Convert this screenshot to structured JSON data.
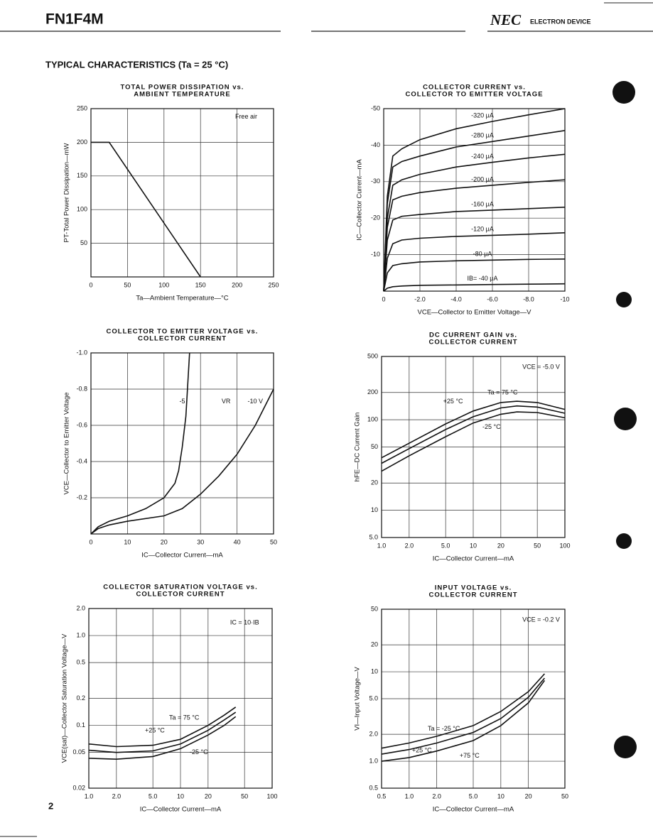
{
  "header": {
    "part": "FN1F4M",
    "brand": "NEC",
    "brand_sub": "ELECTRON DEVICE"
  },
  "section_title": "TYPICAL CHARACTERISTICS (Ta = 25 °C)",
  "page_number": "2",
  "chart_data": [
    {
      "type": "line",
      "title": [
        "TOTAL POWER DISSIPATION vs.",
        "AMBIENT TEMPERATURE"
      ],
      "x_label": "Ta—Ambient Temperature—°C",
      "y_label": "PT-Total Power Dissipation—mW",
      "xlim": [
        0,
        250
      ],
      "ylim": [
        0,
        250
      ],
      "xticks": [
        0,
        50,
        100,
        150,
        200,
        250
      ],
      "yticks": [
        50,
        100,
        150,
        200,
        250
      ],
      "grid": true,
      "color": "#111",
      "annotations": [
        "Free air"
      ],
      "series": [
        {
          "x": [
            0,
            25,
            150
          ],
          "values": [
            200,
            200,
            0
          ]
        }
      ]
    },
    {
      "type": "line",
      "title": [
        "COLLECTOR CURRENT vs.",
        "COLLECTOR TO EMITTER VOLTAGE"
      ],
      "x_label": "VCE—Collector to Emitter Voltage—V",
      "y_label": "IC—Collector Current—mA",
      "xlim": [
        0,
        -10
      ],
      "ylim": [
        0,
        -50
      ],
      "xticks": [
        0,
        {
          "value": -2,
          "label": "-2.0"
        },
        {
          "value": -4,
          "label": "-4.0"
        },
        {
          "value": -6,
          "label": "-6.0"
        },
        {
          "value": -8,
          "label": "-8.0"
        },
        -10
      ],
      "yticks": [
        -10,
        -20,
        -30,
        -40,
        -50
      ],
      "grid": true,
      "color": "#111",
      "annotations": [],
      "series": [
        {
          "name": "-320 μA",
          "x": [
            0,
            -0.2,
            -0.5,
            -1,
            -2,
            -4,
            -6,
            -8,
            -10
          ],
          "values": [
            0,
            -26,
            -37,
            -39,
            -41.5,
            -44.5,
            -46.5,
            -48.3,
            -50
          ]
        },
        {
          "name": "-280 μA",
          "x": [
            0,
            -0.2,
            -0.5,
            -1,
            -2,
            -4,
            -6,
            -8,
            -10
          ],
          "values": [
            0,
            -24,
            -34,
            -35.5,
            -37,
            -39.5,
            -41,
            -42.5,
            -44
          ]
        },
        {
          "name": "-240 μA",
          "x": [
            0,
            -0.2,
            -0.5,
            -1,
            -2,
            -4,
            -6,
            -8,
            -10
          ],
          "values": [
            0,
            -20,
            -29,
            -30.5,
            -32,
            -34,
            -35.3,
            -36.5,
            -37.5
          ]
        },
        {
          "name": "-200 μA",
          "x": [
            0,
            -0.2,
            -0.5,
            -1,
            -2,
            -4,
            -6,
            -8,
            -10
          ],
          "values": [
            0,
            -17.5,
            -25,
            -26,
            -27,
            -28.2,
            -29,
            -29.8,
            -30.5
          ]
        },
        {
          "name": "-160 μA",
          "x": [
            0,
            -0.2,
            -0.5,
            -1,
            -2,
            -4,
            -6,
            -8,
            -10
          ],
          "values": [
            0,
            -14,
            -19.5,
            -20.5,
            -21,
            -21.8,
            -22.2,
            -22.6,
            -23
          ]
        },
        {
          "name": "-120 μA",
          "x": [
            0,
            -0.2,
            -0.5,
            -1,
            -2,
            -4,
            -6,
            -8,
            -10
          ],
          "values": [
            0,
            -9,
            -13,
            -14,
            -14.5,
            -15,
            -15.3,
            -15.6,
            -16
          ]
        },
        {
          "name": "-80 μA",
          "x": [
            0,
            -0.2,
            -0.5,
            -1,
            -2,
            -4,
            -6,
            -8,
            -10
          ],
          "values": [
            0,
            -5,
            -7,
            -7.5,
            -8,
            -8.3,
            -8.5,
            -8.7,
            -8.8
          ]
        },
        {
          "name": "IB= -40 μA",
          "x": [
            0,
            -0.2,
            -0.5,
            -1,
            -2,
            -4,
            -6,
            -8,
            -10
          ],
          "values": [
            0,
            -0.8,
            -1.2,
            -1.4,
            -1.6,
            -1.7,
            -1.8,
            -1.9,
            -2
          ]
        }
      ]
    },
    {
      "type": "line",
      "title": [
        "COLLECTOR TO EMITTER VOLTAGE vs.",
        "COLLECTOR CURRENT"
      ],
      "x_label": "IC—Collector Current—mA",
      "y_label": "VCE—Collector to Emitter Voltage",
      "xlim": [
        0,
        50
      ],
      "ylim": [
        0,
        -1
      ],
      "xticks": [
        0,
        10,
        20,
        30,
        40,
        50
      ],
      "yticks": [
        -0.2,
        -0.4,
        -0.6,
        -0.8,
        {
          "value": -1,
          "label": "-1.0"
        }
      ],
      "grid": true,
      "color": "#111",
      "annotations": [
        "VR"
      ],
      "series": [
        {
          "name": "-5",
          "x": [
            0,
            2,
            5,
            10,
            15,
            20,
            23,
            24,
            25,
            26,
            27
          ],
          "values": [
            0,
            -0.04,
            -0.07,
            -0.1,
            -0.14,
            -0.2,
            -0.28,
            -0.35,
            -0.48,
            -0.65,
            -1
          ]
        },
        {
          "name": "-10 V",
          "x": [
            0,
            2,
            5,
            10,
            20,
            25,
            30,
            35,
            40,
            45,
            50
          ],
          "values": [
            0,
            -0.03,
            -0.05,
            -0.07,
            -0.1,
            -0.14,
            -0.22,
            -0.32,
            -0.44,
            -0.6,
            -0.8
          ]
        }
      ]
    },
    {
      "type": "line",
      "title": [
        "DC CURRENT GAIN vs.",
        "COLLECTOR CURRENT"
      ],
      "x_label": "IC—Collector Current—mA",
      "y_label": "hFE—DC Current Gain",
      "xscale": "log",
      "yscale": "log",
      "xlim": [
        1,
        100
      ],
      "ylim": [
        5,
        500
      ],
      "xticks": [
        {
          "value": 1,
          "label": "1.0"
        },
        {
          "value": 2,
          "label": "2.0"
        },
        {
          "value": 5,
          "label": "5.0"
        },
        10,
        20,
        50,
        100
      ],
      "yticks": [
        {
          "value": 5,
          "label": "5.0"
        },
        10,
        20,
        50,
        100,
        200,
        500
      ],
      "grid": true,
      "color": "#111",
      "annotations": [
        "VCE = -5.0 V"
      ],
      "series": [
        {
          "name": "Ta = 75 °C",
          "x": [
            1,
            2,
            5,
            10,
            20,
            30,
            50,
            100
          ],
          "values": [
            38,
            55,
            90,
            125,
            155,
            160,
            155,
            130
          ]
        },
        {
          "name": "+25 °C",
          "x": [
            1,
            2,
            5,
            10,
            20,
            30,
            50,
            100
          ],
          "values": [
            33,
            48,
            78,
            108,
            135,
            142,
            138,
            118
          ]
        },
        {
          "name": "-25 °C",
          "x": [
            1,
            2,
            5,
            10,
            20,
            30,
            50,
            100
          ],
          "values": [
            27,
            40,
            65,
            92,
            115,
            122,
            120,
            105
          ]
        }
      ]
    },
    {
      "type": "line",
      "title": [
        "COLLECTOR SATURATION VOLTAGE vs.",
        "COLLECTOR CURRENT"
      ],
      "x_label": "IC—Collector Current—mA",
      "y_label": "VCE(sat)—Collector Saturation Voltage—V",
      "xscale": "log",
      "yscale": "log",
      "xlim": [
        1,
        100
      ],
      "ylim": [
        0.02,
        2
      ],
      "xticks": [
        {
          "value": 1,
          "label": "1.0"
        },
        {
          "value": 2,
          "label": "2.0"
        },
        {
          "value": 5,
          "label": "5.0"
        },
        10,
        20,
        50,
        100
      ],
      "yticks": [
        0.02,
        0.05,
        0.1,
        0.2,
        0.5,
        {
          "value": 1,
          "label": "1.0"
        },
        {
          "value": 2,
          "label": "2.0"
        }
      ],
      "grid": true,
      "color": "#111",
      "annotations": [
        "IC = 10·IB"
      ],
      "series": [
        {
          "name": "Ta = 75 °C",
          "x": [
            1,
            2,
            5,
            10,
            20,
            30,
            40
          ],
          "values": [
            0.062,
            0.058,
            0.06,
            0.07,
            0.1,
            0.13,
            0.16
          ]
        },
        {
          "name": "+25 °C",
          "x": [
            1,
            2,
            5,
            10,
            20,
            30,
            40
          ],
          "values": [
            0.053,
            0.05,
            0.052,
            0.062,
            0.088,
            0.115,
            0.14
          ]
        },
        {
          "name": "-25 °C",
          "x": [
            1,
            2,
            5,
            10,
            20,
            30,
            40
          ],
          "values": [
            0.043,
            0.042,
            0.045,
            0.055,
            0.078,
            0.1,
            0.125
          ]
        }
      ]
    },
    {
      "type": "line",
      "title": [
        "INPUT VOLTAGE vs.",
        "COLLECTOR CURRENT"
      ],
      "x_label": "IC—Collector Current—mA",
      "y_label": "VI—Input Voltage—V",
      "xscale": "log",
      "yscale": "log",
      "xlim": [
        0.5,
        50
      ],
      "ylim": [
        0.5,
        50
      ],
      "xticks": [
        0.5,
        {
          "value": 1,
          "label": "1.0"
        },
        {
          "value": 2,
          "label": "2.0"
        },
        {
          "value": 5,
          "label": "5.0"
        },
        10,
        20,
        50
      ],
      "yticks": [
        0.5,
        {
          "value": 1,
          "label": "1.0"
        },
        {
          "value": 2,
          "label": "2.0"
        },
        {
          "value": 5,
          "label": "5.0"
        },
        10,
        20,
        50
      ],
      "grid": true,
      "color": "#111",
      "annotations": [
        "VCE = -0.2 V"
      ],
      "series": [
        {
          "name": "Ta = -25 °C",
          "x": [
            0.5,
            1,
            2,
            5,
            10,
            20,
            30
          ],
          "values": [
            1.4,
            1.6,
            1.9,
            2.5,
            3.6,
            6,
            9.5
          ]
        },
        {
          "name": "+25 °C",
          "x": [
            0.5,
            1,
            2,
            5,
            10,
            20,
            30
          ],
          "values": [
            1.2,
            1.35,
            1.6,
            2.1,
            3,
            5.2,
            8.5
          ]
        },
        {
          "name": "+75 °C",
          "x": [
            0.5,
            1,
            2,
            5,
            10,
            20,
            30
          ],
          "values": [
            1,
            1.1,
            1.3,
            1.7,
            2.5,
            4.5,
            8
          ]
        }
      ]
    }
  ]
}
